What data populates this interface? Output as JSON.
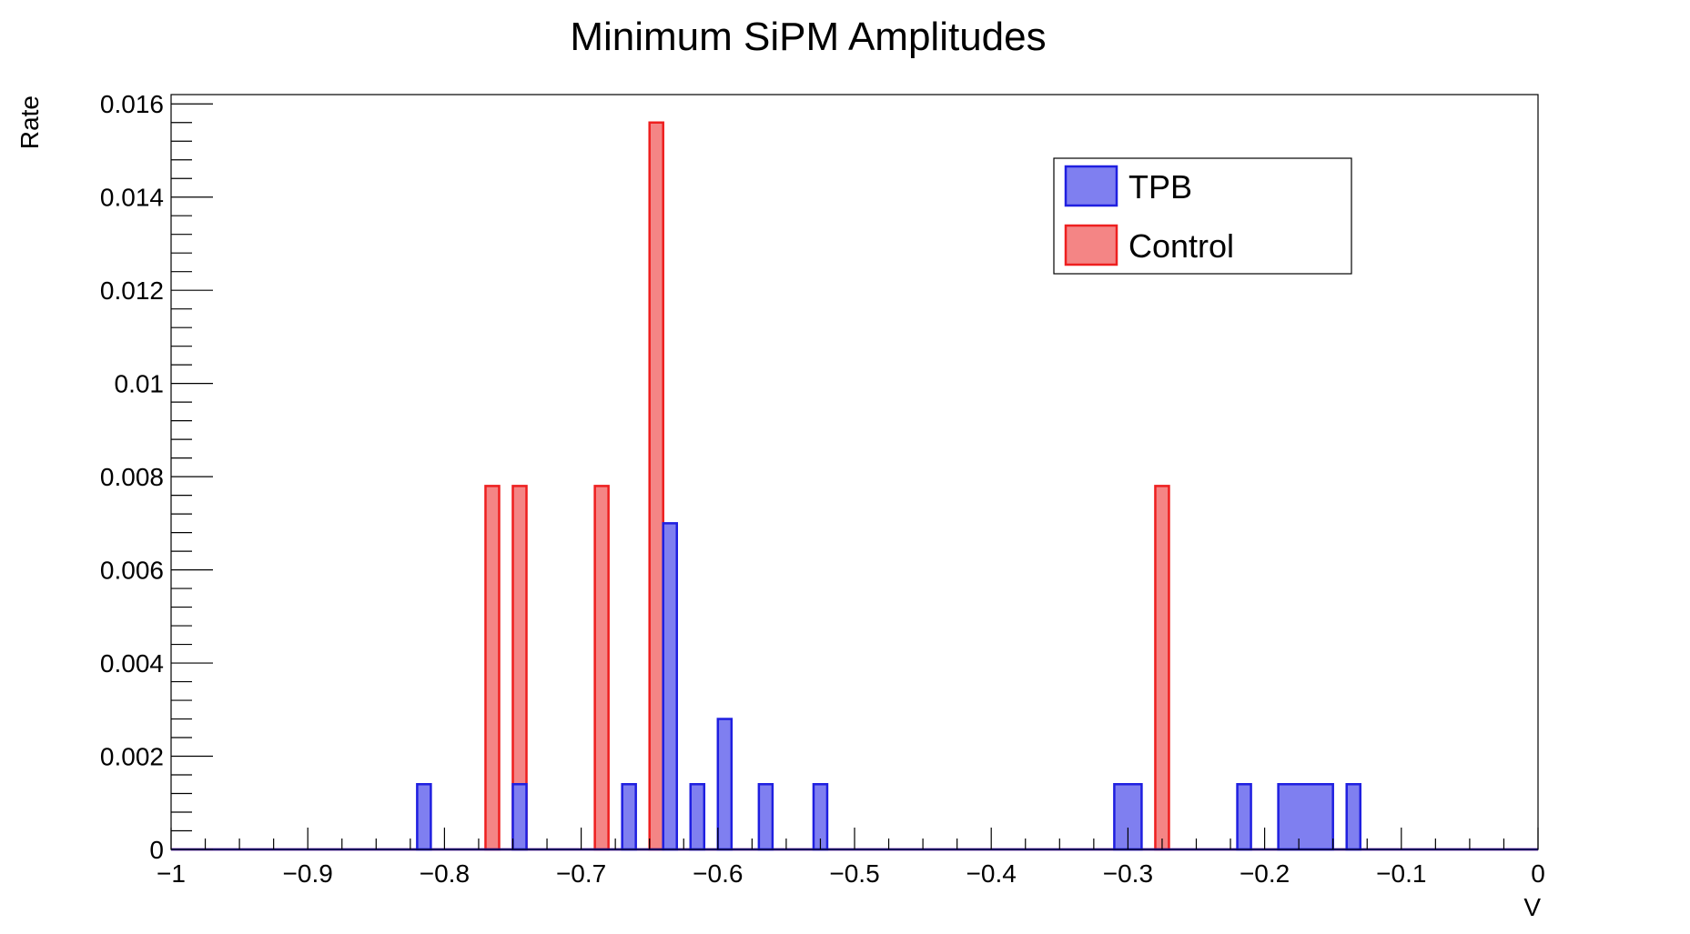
{
  "chart_data": {
    "type": "bar",
    "title": "Minimum SiPM Amplitudes",
    "xlabel": "V",
    "ylabel": "Rate",
    "xlim": [
      -1,
      0
    ],
    "ylim": [
      0,
      0.0162
    ],
    "bin_width": 0.01,
    "grid": false,
    "legend_position": "top-right",
    "x_tick_labels": [
      "−1",
      "−0.9",
      "−0.8",
      "−0.7",
      "−0.6",
      "−0.5",
      "−0.4",
      "−0.3",
      "−0.2",
      "−0.1",
      "0"
    ],
    "x_tick_values": [
      -1,
      -0.9,
      -0.8,
      -0.7,
      -0.6,
      -0.5,
      -0.4,
      -0.3,
      -0.2,
      -0.1,
      0
    ],
    "y_tick_labels": [
      "0",
      "0.002",
      "0.004",
      "0.006",
      "0.008",
      "0.01",
      "0.012",
      "0.014",
      "0.016"
    ],
    "y_tick_values": [
      0,
      0.002,
      0.004,
      0.006,
      0.008,
      0.01,
      0.012,
      0.014,
      0.016
    ],
    "series": [
      {
        "name": "TPB",
        "stroke": "#1f1fe0",
        "fill": "#7f7ff0",
        "bins": [
          {
            "x0": -0.82,
            "x1": -0.81,
            "value": 0.0014
          },
          {
            "x0": -0.75,
            "x1": -0.74,
            "value": 0.0014
          },
          {
            "x0": -0.67,
            "x1": -0.66,
            "value": 0.0014
          },
          {
            "x0": -0.64,
            "x1": -0.63,
            "value": 0.007
          },
          {
            "x0": -0.62,
            "x1": -0.61,
            "value": 0.0014
          },
          {
            "x0": -0.6,
            "x1": -0.59,
            "value": 0.0028
          },
          {
            "x0": -0.57,
            "x1": -0.56,
            "value": 0.0014
          },
          {
            "x0": -0.53,
            "x1": -0.52,
            "value": 0.0014
          },
          {
            "x0": -0.31,
            "x1": -0.29,
            "value": 0.0014
          },
          {
            "x0": -0.22,
            "x1": -0.21,
            "value": 0.0014
          },
          {
            "x0": -0.19,
            "x1": -0.15,
            "value": 0.0014
          },
          {
            "x0": -0.14,
            "x1": -0.13,
            "value": 0.0014
          }
        ]
      },
      {
        "name": "Control",
        "stroke": "#ee1f1f",
        "fill": "#f48585",
        "bins": [
          {
            "x0": -0.77,
            "x1": -0.76,
            "value": 0.0078
          },
          {
            "x0": -0.75,
            "x1": -0.74,
            "value": 0.0078
          },
          {
            "x0": -0.69,
            "x1": -0.68,
            "value": 0.0078
          },
          {
            "x0": -0.65,
            "x1": -0.64,
            "value": 0.0156
          },
          {
            "x0": -0.28,
            "x1": -0.27,
            "value": 0.0078
          }
        ]
      }
    ]
  }
}
